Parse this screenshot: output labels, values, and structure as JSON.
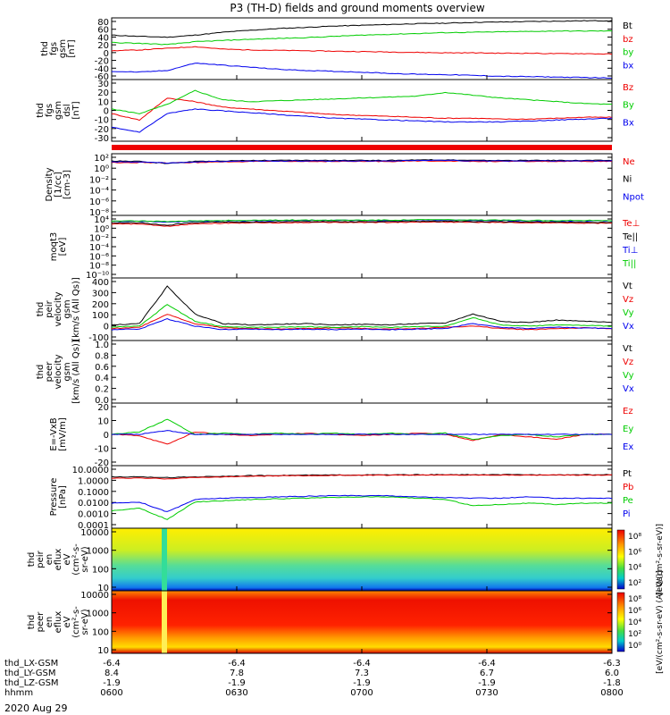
{
  "title": "P3 (TH-D) fields and ground moments overview",
  "date": "2020 Aug 29",
  "colors": {
    "black": "#000000",
    "red": "#ee0000",
    "green": "#00cc00",
    "blue": "#0000ee"
  },
  "chart_data": [
    {
      "type": "line",
      "ylabel": [
        "thd",
        "fgs",
        "gsm",
        "[nT]"
      ],
      "ylim": [
        -60,
        90
      ],
      "yticks": [
        "80",
        "60",
        "40",
        "20",
        "0",
        "-20",
        "-40",
        "-60"
      ],
      "series": [
        {
          "name": "Bt",
          "color": "#000000",
          "values": [
            48,
            45,
            43,
            48,
            55,
            60,
            64,
            67,
            70,
            72,
            74,
            76,
            77,
            79,
            80,
            81,
            82,
            83,
            83
          ]
        },
        {
          "name": "bz",
          "color": "#ee0000",
          "values": [
            10,
            12,
            16,
            20,
            14,
            12,
            11,
            10,
            9,
            8,
            7,
            6,
            5,
            5,
            4,
            4,
            3,
            3,
            2
          ]
        },
        {
          "name": "by",
          "color": "#00cc00",
          "values": [
            30,
            28,
            25,
            32,
            35,
            38,
            40,
            42,
            45,
            48,
            50,
            52,
            54,
            55,
            56,
            57,
            58,
            58,
            58
          ]
        },
        {
          "name": "bx",
          "color": "#0000ee",
          "values": [
            -40,
            -42,
            -38,
            -20,
            -25,
            -30,
            -35,
            -38,
            -40,
            -42,
            -45,
            -47,
            -48,
            -50,
            -52,
            -53,
            -54,
            -55,
            -56
          ]
        }
      ]
    },
    {
      "type": "line",
      "ylabel": [
        "thd",
        "fgs",
        "gsm",
        "dsl",
        "[nT]"
      ],
      "ylim": [
        -35,
        32
      ],
      "yticks": [
        "30",
        "20",
        "10",
        "0",
        "-10",
        "-20",
        "-30"
      ],
      "series": [
        {
          "name": "Bz",
          "color": "#ee0000",
          "values": [
            -5,
            -12,
            12,
            8,
            2,
            0,
            -2,
            -4,
            -6,
            -7,
            -8,
            -9,
            -10,
            -10,
            -11,
            -11,
            -10,
            -9,
            -9
          ]
        },
        {
          "name": "By",
          "color": "#00cc00",
          "values": [
            0,
            -5,
            5,
            20,
            10,
            8,
            9,
            10,
            11,
            12,
            13,
            14,
            18,
            15,
            12,
            10,
            8,
            6,
            5
          ]
        },
        {
          "name": "Bx",
          "color": "#0000ee",
          "values": [
            -20,
            -25,
            -5,
            0,
            -2,
            -4,
            -6,
            -8,
            -10,
            -11,
            -12,
            -13,
            -14,
            -14,
            -14,
            -13,
            -12,
            -11,
            -10
          ]
        }
      ]
    },
    {
      "type": "line",
      "ylabel": [
        "Density",
        "[1/cc]",
        "[cm-3]"
      ],
      "scale": "log",
      "ylim": [
        -9,
        3
      ],
      "yticks": [
        "10²",
        "10⁰",
        "10⁻²",
        "10⁻⁴",
        "10⁻⁶",
        "10⁻⁸"
      ],
      "series": [
        {
          "name": "Ne",
          "color": "#ee0000",
          "values": [
            1.3,
            1.3,
            1.2,
            1.3,
            1.4,
            1.5,
            1.5,
            1.5,
            1.5,
            1.5,
            1.5,
            1.6,
            1.6,
            1.5,
            1.5,
            1.5,
            1.5,
            1.5,
            1.5
          ]
        },
        {
          "name": "Ni",
          "color": "#000000",
          "values": [
            1.6,
            1.5,
            1.1,
            1.5,
            1.6,
            1.7,
            1.7,
            1.7,
            1.7,
            1.7,
            1.7,
            1.8,
            1.8,
            1.7,
            1.7,
            1.7,
            1.7,
            1.7,
            1.7
          ]
        },
        {
          "name": "Npot",
          "color": "#0000ee",
          "values": [
            1.4,
            1.4,
            1.2,
            1.4,
            1.5,
            1.6,
            1.6,
            1.6,
            1.6,
            1.6,
            1.6,
            1.7,
            1.7,
            1.6,
            1.6,
            1.6,
            1.6,
            1.6,
            1.6
          ]
        }
      ]
    },
    {
      "type": "line",
      "ylabel": [
        "moqt3",
        "[eV]"
      ],
      "scale": "log",
      "ylim": [
        -11,
        5
      ],
      "yticks": [
        "10⁴",
        "10⁰",
        "10⁻²",
        "10⁻⁴",
        "10⁻⁶",
        "10⁻⁸",
        "10⁻¹⁰"
      ],
      "series": [
        {
          "name": "Te⊥",
          "color": "#ee0000",
          "values": [
            2.8,
            2.8,
            2.2,
            2.9,
            3.0,
            3.1,
            3.1,
            3.2,
            3.2,
            3.2,
            3.2,
            3.3,
            3.3,
            3.2,
            3.2,
            3.1,
            3.1,
            3.0,
            3.0
          ]
        },
        {
          "name": "Te||",
          "color": "#000000",
          "values": [
            3.1,
            3.1,
            2.5,
            3.2,
            3.3,
            3.3,
            3.4,
            3.4,
            3.4,
            3.4,
            3.4,
            3.5,
            3.5,
            3.4,
            3.4,
            3.3,
            3.3,
            3.2,
            3.2
          ]
        },
        {
          "name": "Ti⊥",
          "color": "#0000ee",
          "values": [
            3.5,
            3.5,
            3.3,
            3.5,
            3.6,
            3.6,
            3.7,
            3.7,
            3.7,
            3.7,
            3.7,
            3.8,
            3.8,
            3.7,
            3.7,
            3.6,
            3.6,
            3.6,
            3.6
          ]
        },
        {
          "name": "Ti||",
          "color": "#00cc00",
          "values": [
            3.6,
            3.6,
            3.4,
            3.6,
            3.7,
            3.7,
            3.8,
            3.8,
            3.8,
            3.8,
            3.8,
            3.9,
            3.9,
            3.8,
            3.8,
            3.7,
            3.7,
            3.7,
            3.7
          ]
        }
      ]
    },
    {
      "type": "line",
      "ylabel": [
        "thd",
        "peir",
        "velocity",
        "gsm",
        "[km/s (All Qs)]"
      ],
      "ylim": [
        -100,
        420
      ],
      "yticks": [
        "400",
        "300",
        "200",
        "100",
        "0",
        "-100"
      ],
      "series": [
        {
          "name": "Vt",
          "color": "#000000",
          "values": [
            30,
            40,
            350,
            120,
            40,
            30,
            35,
            40,
            30,
            35,
            30,
            40,
            45,
            120,
            60,
            50,
            70,
            60,
            50
          ]
        },
        {
          "name": "Vz",
          "color": "#ee0000",
          "values": [
            0,
            10,
            120,
            40,
            5,
            0,
            -5,
            0,
            5,
            0,
            -5,
            0,
            10,
            20,
            0,
            -10,
            0,
            5,
            0
          ]
        },
        {
          "name": "Vy",
          "color": "#00cc00",
          "values": [
            10,
            20,
            200,
            60,
            15,
            10,
            10,
            15,
            10,
            15,
            10,
            15,
            20,
            90,
            30,
            20,
            30,
            25,
            20
          ]
        },
        {
          "name": "Vx",
          "color": "#0000ee",
          "values": [
            -10,
            -5,
            80,
            20,
            -10,
            -5,
            -10,
            -5,
            -10,
            -5,
            -10,
            -5,
            0,
            40,
            10,
            0,
            10,
            5,
            0
          ]
        }
      ]
    },
    {
      "type": "line",
      "ylabel": [
        "thd",
        "peer",
        "velocity",
        "gsm",
        "[km/s (All Qs)]"
      ],
      "ylim": [
        -0.1,
        1.0
      ],
      "yticks": [
        "1.0",
        "0.8",
        "0.6",
        "0.4",
        "0.2",
        "0.0"
      ],
      "series": [
        {
          "name": "Vt",
          "color": "#000000",
          "values": []
        },
        {
          "name": "Vz",
          "color": "#ee0000",
          "values": []
        },
        {
          "name": "Vy",
          "color": "#00cc00",
          "values": []
        },
        {
          "name": "Vx",
          "color": "#0000ee",
          "values": []
        }
      ]
    },
    {
      "type": "line",
      "ylabel": [
        "E=-VxB",
        "[mV/m]"
      ],
      "ylim": [
        -25,
        25
      ],
      "yticks": [
        "20",
        "10",
        "0",
        "-10",
        "-20"
      ],
      "series": [
        {
          "name": "Ez",
          "color": "#ee0000",
          "values": [
            0,
            -1,
            -8,
            2,
            0,
            -1,
            0,
            1,
            0,
            -1,
            0,
            1,
            0,
            -5,
            0,
            -2,
            -4,
            0,
            0
          ]
        },
        {
          "name": "Ey",
          "color": "#00cc00",
          "values": [
            0,
            2,
            12,
            0,
            1,
            0,
            1,
            0,
            1,
            0,
            1,
            0,
            1,
            -4,
            -1,
            0,
            -2,
            0,
            0
          ]
        },
        {
          "name": "Ex",
          "color": "#0000ee",
          "values": [
            0,
            0,
            3,
            0,
            0,
            0,
            0,
            0,
            0,
            0,
            0,
            0,
            0,
            0,
            0,
            0,
            0,
            0,
            0
          ]
        }
      ]
    },
    {
      "type": "line",
      "ylabel": [
        "Pressure",
        "[nPa]"
      ],
      "scale": "log",
      "ylim": [
        -4,
        1
      ],
      "yticks": [
        "10.0000",
        "1.0000",
        "0.1000",
        "0.0100",
        "0.0010",
        "0.0001"
      ],
      "series": [
        {
          "name": "Pt",
          "color": "#000000",
          "values": [
            0.1,
            0.1,
            0.05,
            0.1,
            0.15,
            0.2,
            0.22,
            0.24,
            0.25,
            0.26,
            0.26,
            0.27,
            0.27,
            0.27,
            0.27,
            0.27,
            0.27,
            0.27,
            0.27
          ]
        },
        {
          "name": "Pb",
          "color": "#ee0000",
          "values": [
            0.0,
            0.0,
            -0.05,
            0.05,
            0.1,
            0.15,
            0.18,
            0.2,
            0.22,
            0.23,
            0.24,
            0.25,
            0.25,
            0.25,
            0.25,
            0.25,
            0.25,
            0.25,
            0.25
          ]
        },
        {
          "name": "Pe",
          "color": "#00cc00",
          "values": [
            -2.6,
            -2.4,
            -3.3,
            -1.9,
            -1.8,
            -1.7,
            -1.65,
            -1.6,
            -1.55,
            -1.5,
            -1.5,
            -1.6,
            -1.7,
            -2.2,
            -2.1,
            -2.0,
            -2.1,
            -2.0,
            -2.0
          ]
        },
        {
          "name": "Pi",
          "color": "#0000ee",
          "values": [
            -2.0,
            -1.9,
            -2.7,
            -1.7,
            -1.6,
            -1.55,
            -1.5,
            -1.45,
            -1.4,
            -1.4,
            -1.4,
            -1.5,
            -1.55,
            -1.6,
            -1.6,
            -1.5,
            -1.6,
            -1.6,
            -1.6
          ]
        }
      ]
    },
    {
      "type": "heatmap",
      "ylabel": [
        "thd",
        "peir",
        "en",
        "eflux",
        "eV",
        "(cm²-s-",
        "sr-eV)"
      ],
      "yticks": [
        "10000",
        "1000",
        "100",
        "10"
      ],
      "colorbar_label": "[eV/(cm²-s-sr-eV)]",
      "colorbar_ticks": [
        "10⁸",
        "10⁶",
        "10⁴",
        "10²"
      ],
      "note": "ion energy flux spectrogram"
    },
    {
      "type": "heatmap",
      "ylabel": [
        "thd",
        "peer",
        "en",
        "eflux",
        "eV",
        "(cm²-s-",
        "sr-eV)"
      ],
      "yticks": [
        "10000",
        "1000",
        "100",
        "10"
      ],
      "colorbar_label": "[eV/(cm²-s-sr-eV) (All Qs)]",
      "colorbar_ticks": [
        "10⁸",
        "10⁶",
        "10⁴",
        "10²",
        "10⁰"
      ],
      "note": "electron energy flux spectrogram"
    }
  ],
  "xaxis": {
    "rows": [
      {
        "label": "thd_LX-GSM",
        "values": [
          "-6.4",
          "-6.4",
          "-6.4",
          "-6.4",
          "-6.3"
        ]
      },
      {
        "label": "thd_LY-GSM",
        "values": [
          "8.4",
          "7.8",
          "7.3",
          "6.7",
          "6.0"
        ]
      },
      {
        "label": "thd_LZ-GSM",
        "values": [
          "-1.9",
          "-1.9",
          "-1.9",
          "-1.9",
          "-1.8"
        ]
      },
      {
        "label": "hhmm",
        "values": [
          "0600",
          "0630",
          "0700",
          "0730",
          "0800"
        ]
      }
    ]
  }
}
